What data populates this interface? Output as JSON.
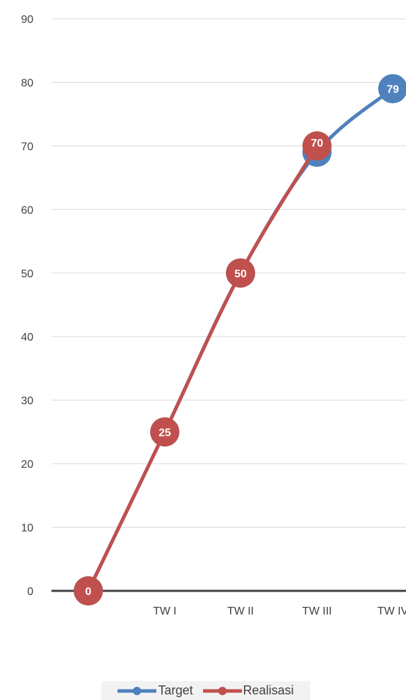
{
  "chart_data": {
    "type": "line",
    "title": "",
    "xlabel": "",
    "ylabel": "",
    "categories": [
      "",
      "TW I",
      "TW II",
      "TW III",
      "TW IV"
    ],
    "ylim": [
      0,
      90
    ],
    "yticks": [
      0,
      10,
      20,
      30,
      40,
      50,
      60,
      70,
      80,
      90
    ],
    "grid": true,
    "legend_position": "bottom",
    "series": [
      {
        "name": "Target",
        "color": "#4f81bd",
        "values": [
          0,
          25,
          50,
          69,
          79
        ]
      },
      {
        "name": "Realisasi",
        "color": "#c0504d",
        "values": [
          0,
          25,
          50,
          70,
          null
        ]
      }
    ]
  }
}
